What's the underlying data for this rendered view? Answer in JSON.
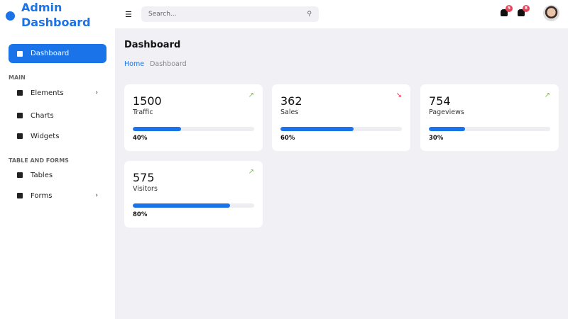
{
  "app": {
    "title": "Admin Dashboard",
    "accent": "#1a73e8"
  },
  "sidebar": {
    "active": {
      "label": "Dashboard",
      "icon": "dashboard-icon"
    },
    "sections": [
      {
        "title": "MAIN",
        "items": [
          {
            "label": "Elements",
            "icon": "inbox-icon",
            "has_submenu": true
          },
          {
            "label": "Charts",
            "icon": "chart-icon",
            "has_submenu": false
          },
          {
            "label": "Widgets",
            "icon": "widgets-icon",
            "has_submenu": false
          }
        ]
      },
      {
        "title": "TABLE AND FORMS",
        "items": [
          {
            "label": "Tables",
            "icon": "table-icon",
            "has_submenu": false
          },
          {
            "label": "Forms",
            "icon": "clipboard-icon",
            "has_submenu": true
          }
        ]
      }
    ]
  },
  "topbar": {
    "search_placeholder": "Search...",
    "notifications": "5",
    "messages": "8"
  },
  "page": {
    "title": "Dashboard",
    "breadcrumb": [
      "Home",
      "Dashboard"
    ]
  },
  "cards": [
    {
      "value": "1500",
      "label": "Traffic",
      "percent": 40,
      "percent_label": "40%",
      "trend": "up",
      "trend_color": "#7cc242"
    },
    {
      "value": "362",
      "label": "Sales",
      "percent": 60,
      "percent_label": "60%",
      "trend": "down",
      "trend_color": "#e0344a"
    },
    {
      "value": "754",
      "label": "Pageviews",
      "percent": 30,
      "percent_label": "30%",
      "trend": "up",
      "trend_color": "#7cc242"
    },
    {
      "value": "575",
      "label": "Visitors",
      "percent": 80,
      "percent_label": "80%",
      "trend": "up",
      "trend_color": "#7cc242"
    }
  ]
}
